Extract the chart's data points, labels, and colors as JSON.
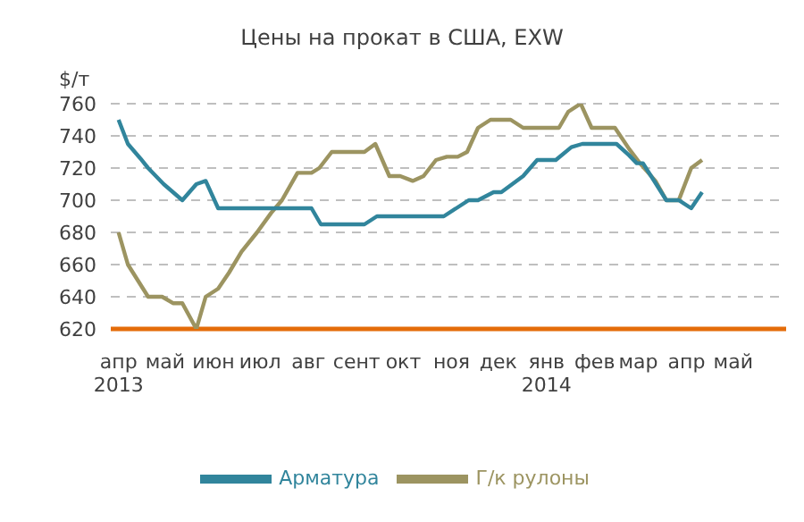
{
  "chart_data": {
    "type": "line",
    "title": "Цены на прокат в США, EXW",
    "ylabel": "$/т",
    "series": [
      {
        "name": "Г/к рулоны",
        "color": "#9c9461",
        "x": [
          "2013-04-01",
          "2013-04-07",
          "2013-04-20",
          "2013-04-29",
          "2013-05-06",
          "2013-05-12",
          "2013-05-21",
          "2013-05-27",
          "2013-06-04",
          "2013-06-11",
          "2013-06-19",
          "2013-06-29",
          "2013-07-08",
          "2013-07-15",
          "2013-07-25",
          "2013-08-03",
          "2013-08-08",
          "2013-08-16",
          "2013-09-06",
          "2013-09-13",
          "2013-09-22",
          "2013-09-29",
          "2013-10-07",
          "2013-10-14",
          "2013-10-22",
          "2013-10-29",
          "2013-11-05",
          "2013-11-11",
          "2013-11-18",
          "2013-11-26",
          "2013-12-09",
          "2013-12-17",
          "2014-01-09",
          "2014-01-15",
          "2014-01-23",
          "2014-01-30",
          "2014-02-14",
          "2014-02-23",
          "2014-03-02",
          "2014-03-12",
          "2014-03-19",
          "2014-03-27",
          "2014-04-04",
          "2014-04-11"
        ],
        "values": [
          680,
          660,
          640,
          640,
          636,
          636,
          620,
          640,
          645,
          655,
          668,
          680,
          692,
          700,
          717,
          717,
          720,
          730,
          730,
          735,
          715,
          715,
          712,
          715,
          725,
          727,
          727,
          730,
          745,
          750,
          750,
          745,
          745,
          755,
          760,
          745,
          745,
          732,
          723,
          712,
          700,
          700,
          720,
          725
        ]
      },
      {
        "name": "Арматура",
        "color": "#31859c",
        "x": [
          "2013-04-01",
          "2013-04-07",
          "2013-04-15",
          "2013-04-20",
          "2013-04-30",
          "2013-05-12",
          "2013-05-21",
          "2013-05-27",
          "2013-06-04",
          "2013-08-03",
          "2013-08-09",
          "2013-09-06",
          "2013-09-14",
          "2013-10-27",
          "2013-11-12",
          "2013-11-18",
          "2013-11-28",
          "2013-12-03",
          "2013-12-17",
          "2013-12-26",
          "2014-01-07",
          "2014-01-17",
          "2014-01-24",
          "2014-02-15",
          "2014-02-23",
          "2014-02-28",
          "2014-03-04",
          "2014-03-19",
          "2014-03-27",
          "2014-04-04",
          "2014-04-11"
        ],
        "values": [
          750,
          735,
          726,
          720,
          710,
          700,
          710,
          712,
          695,
          695,
          685,
          685,
          690,
          690,
          700,
          700,
          705,
          705,
          715,
          725,
          725,
          733,
          735,
          735,
          728,
          723,
          723,
          700,
          700,
          695,
          705
        ]
      }
    ],
    "xlim": [
      "2013-03-27",
      "2014-06-04"
    ],
    "xticks": [
      {
        "value": "2013-04-01",
        "label": "апр 2013"
      },
      {
        "value": "2013-05-01",
        "label": "май"
      },
      {
        "value": "2013-06-01",
        "label": "июн"
      },
      {
        "value": "2013-07-01",
        "label": "июл"
      },
      {
        "value": "2013-08-01",
        "label": "авг"
      },
      {
        "value": "2013-09-01",
        "label": "сент"
      },
      {
        "value": "2013-10-01",
        "label": "окт"
      },
      {
        "value": "2013-11-01",
        "label": "ноя"
      },
      {
        "value": "2013-12-01",
        "label": "дек"
      },
      {
        "value": "2014-01-01",
        "label": "янв 2014"
      },
      {
        "value": "2014-02-01",
        "label": "фев"
      },
      {
        "value": "2014-03-01",
        "label": "мар"
      },
      {
        "value": "2014-04-01",
        "label": "апр"
      },
      {
        "value": "2014-05-01",
        "label": "май"
      }
    ],
    "ylim": [
      620,
      760
    ],
    "yticks": [
      620,
      640,
      660,
      680,
      700,
      720,
      740,
      760
    ],
    "grid": "y",
    "legend": "bottom",
    "marker": "none",
    "line_style": "solid"
  }
}
